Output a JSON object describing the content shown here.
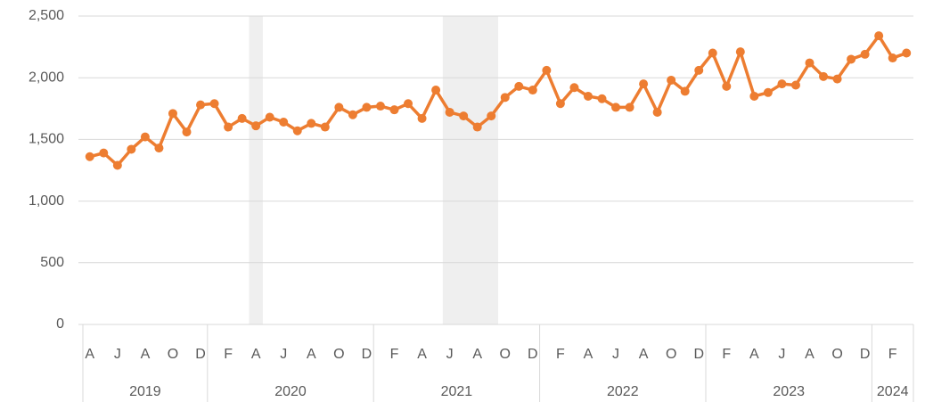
{
  "chart_data": {
    "type": "line",
    "categories": [
      "A",
      null,
      "J",
      null,
      "A",
      null,
      "O",
      null,
      "D",
      null,
      "F",
      null,
      "A",
      null,
      "J",
      null,
      "A",
      null,
      "O",
      null,
      "D",
      null,
      "F",
      null,
      "A",
      null,
      "J",
      null,
      "A",
      null,
      "O",
      null,
      "D",
      null,
      "F",
      null,
      "A",
      null,
      "J",
      null,
      "A",
      null,
      "O",
      null,
      "D",
      null,
      "F",
      null,
      "A",
      null,
      "J",
      null,
      "A",
      null,
      "O",
      null,
      "D",
      null,
      "F",
      null
    ],
    "groups": [
      {
        "label": "2019",
        "size": 9
      },
      {
        "label": "2020",
        "size": 12
      },
      {
        "label": "2021",
        "size": 12
      },
      {
        "label": "2022",
        "size": 12
      },
      {
        "label": "2023",
        "size": 12
      },
      {
        "label": "2024",
        "size": 3
      }
    ],
    "series": [
      {
        "color": "#ed7d31",
        "values": [
          1360,
          1390,
          1290,
          1420,
          1520,
          1430,
          1710,
          1560,
          1780,
          1790,
          1600,
          1670,
          1610,
          1680,
          1640,
          1570,
          1630,
          1600,
          1760,
          1700,
          1760,
          1770,
          1740,
          1790,
          1670,
          1900,
          1720,
          1690,
          1600,
          1690,
          1840,
          1930,
          1900,
          2060,
          1790,
          1920,
          1850,
          1830,
          1760,
          1760,
          1950,
          1720,
          1980,
          1890,
          2060,
          2200,
          1930,
          2210,
          1850,
          1880,
          1950,
          1940,
          2120,
          2010,
          1990,
          2150,
          2190,
          2340,
          2160,
          2200
        ]
      }
    ],
    "shaded": [
      {
        "from": 12,
        "to": 12
      },
      {
        "from": 26,
        "to": 29
      }
    ],
    "shade_color": "#efefef",
    "ylim": [
      0,
      2500
    ],
    "yticks": [
      0,
      500,
      {
        "value": 1000,
        "label": "1,000"
      },
      {
        "value": 1500,
        "label": "1,500"
      },
      {
        "value": 2000,
        "label": "2,000"
      },
      {
        "value": 2500,
        "label": "2,500"
      }
    ],
    "grid": true
  }
}
